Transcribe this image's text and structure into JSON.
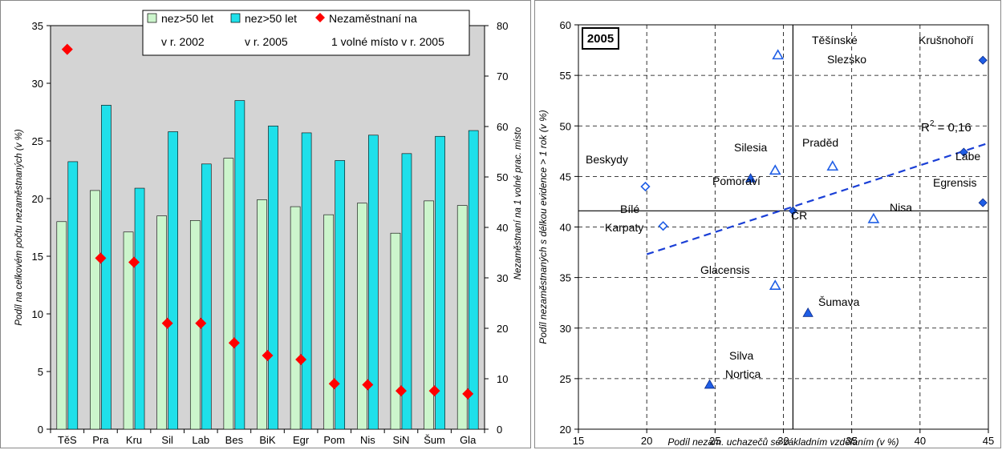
{
  "chart_data": [
    {
      "type": "bar",
      "categories": [
        "TěS",
        "Pra",
        "Kru",
        "Sil",
        "Lab",
        "Bes",
        "BiK",
        "Egr",
        "Pom",
        "Nis",
        "SiN",
        "Šum",
        "Gla"
      ],
      "series": [
        {
          "name": "nez>50 let v r. 2002",
          "name_lines": [
            "nez>50 let",
            "v r. 2002"
          ],
          "axis": "left",
          "kind": "bar",
          "color": "#ccf5cc",
          "values": [
            18.0,
            20.7,
            17.1,
            18.5,
            18.1,
            23.5,
            19.9,
            19.3,
            18.6,
            19.6,
            17.0,
            19.8,
            19.4
          ]
        },
        {
          "name": "nez>50 let v r. 2005",
          "name_lines": [
            "nez>50 let",
            "v r. 2005"
          ],
          "axis": "left",
          "kind": "bar",
          "color": "#1fe0ea",
          "values": [
            23.2,
            28.1,
            20.9,
            25.8,
            23.0,
            28.5,
            26.3,
            25.7,
            23.3,
            25.5,
            23.9,
            25.4,
            25.9
          ]
        },
        {
          "name": "Nezaměstnaní na 1 volné místo v r. 2005",
          "name_lines": [
            "Nezaměstnaní na",
            "1 volné místo v r. 2005"
          ],
          "axis": "right",
          "kind": "marker",
          "color": "#ff0000",
          "values": [
            75.3,
            33.9,
            33.1,
            21.0,
            21.0,
            17.1,
            14.6,
            13.8,
            9.0,
            8.8,
            7.6,
            7.6,
            7.0
          ]
        }
      ],
      "ylabel": "Podíl na celkovém počtu nezaměstnaných (v %)",
      "y2label": "Nezaměstnaní na 1 volné prac. místo",
      "ylim": [
        0,
        35
      ],
      "yticks": [
        0,
        5,
        10,
        15,
        20,
        25,
        30,
        35
      ],
      "y2lim": [
        0,
        80
      ],
      "y2ticks": [
        0,
        10,
        20,
        30,
        40,
        50,
        60,
        70,
        80
      ],
      "grid": false,
      "legend": "top"
    },
    {
      "type": "scatter",
      "title": "2005",
      "xlabel": "Podíl nezam. uchazečů se základním vzděláním (v %)",
      "ylabel": "Podíl nezaměstnaných s délkou evidence > 1 rok (v %)",
      "xlim": [
        15,
        45
      ],
      "xticks": [
        15,
        20,
        25,
        30,
        35,
        40,
        45
      ],
      "ylim": [
        20,
        60
      ],
      "yticks": [
        20,
        25,
        30,
        35,
        40,
        45,
        50,
        55,
        60
      ],
      "grid": true,
      "points": [
        {
          "label": "Těšínské Slezsko",
          "lines": [
            "Těšínské",
            "Slezsko"
          ],
          "x": 29.6,
          "y": 57.0,
          "marker": "triangle-open"
        },
        {
          "label": "Krušnohoří",
          "lines": [
            "Krušnohoří"
          ],
          "x": 44.6,
          "y": 56.5,
          "marker": "diamond-filled"
        },
        {
          "label": "Praděd",
          "lines": [
            "Praděd"
          ],
          "x": 33.6,
          "y": 46.0,
          "marker": "triangle-open"
        },
        {
          "label": "Labe",
          "lines": [
            "Labe"
          ],
          "x": 43.2,
          "y": 47.4,
          "marker": "diamond-filled"
        },
        {
          "label": "Silesia",
          "lines": [
            "Silesia"
          ],
          "x": 29.4,
          "y": 45.6,
          "marker": "triangle-open"
        },
        {
          "label": "Pomoraví",
          "lines": [
            "Pomoraví"
          ],
          "x": 27.6,
          "y": 44.8,
          "marker": "triangle-filled"
        },
        {
          "label": "Beskydy",
          "lines": [
            "Beskydy"
          ],
          "x": 19.9,
          "y": 44.0,
          "marker": "diamond-open"
        },
        {
          "label": "Egrensis",
          "lines": [
            "Egrensis"
          ],
          "x": 44.6,
          "y": 42.4,
          "marker": "diamond-filled"
        },
        {
          "label": "ČR",
          "lines": [
            "ČR"
          ],
          "x": 30.7,
          "y": 41.6,
          "marker": "diamond-filled"
        },
        {
          "label": "Nisa",
          "lines": [
            "Nisa"
          ],
          "x": 36.6,
          "y": 40.8,
          "marker": "triangle-open"
        },
        {
          "label": "Bílé Karpaty",
          "lines": [
            "Bílé",
            "Karpaty"
          ],
          "x": 21.2,
          "y": 40.1,
          "marker": "diamond-open"
        },
        {
          "label": "Glacensis",
          "lines": [
            "Glacensis"
          ],
          "x": 29.4,
          "y": 34.2,
          "marker": "triangle-open"
        },
        {
          "label": "Šumava",
          "lines": [
            "Šumava"
          ],
          "x": 31.8,
          "y": 31.5,
          "marker": "triangle-filled"
        },
        {
          "label": "Silva Nortica",
          "lines": [
            "Silva",
            "Nortica"
          ],
          "x": 24.6,
          "y": 24.4,
          "marker": "triangle-filled"
        }
      ],
      "trendline": {
        "label": "R² = 0,16",
        "label_base": "R",
        "label_sup": "2",
        "label_rest": " = 0,16",
        "x": [
          20,
          45
        ],
        "y": [
          37.3,
          48.3
        ],
        "color": "#1a3fd6"
      },
      "reference_lines": {
        "x": 30.7,
        "y": 41.6
      },
      "marker_color": "#1f5ee6"
    }
  ]
}
